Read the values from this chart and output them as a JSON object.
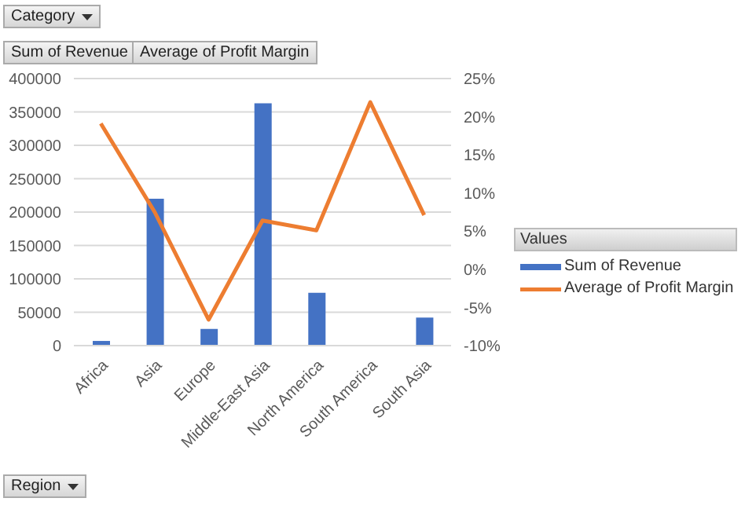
{
  "chart_data": {
    "type": "bar",
    "categories": [
      "Africa",
      "Asia",
      "Europe",
      "Middle-East Asia",
      "North America",
      "South America",
      "South Asia"
    ],
    "series": [
      {
        "name": "Sum of Revenue",
        "color": "#4472c4",
        "values": [
          7000,
          220000,
          25000,
          363000,
          79000,
          null,
          42000
        ]
      },
      {
        "name": "Average of Profit Margin",
        "type": "line",
        "axis": "y2",
        "color": "#ed7d31",
        "values": [
          19.1,
          7.5,
          -6.6,
          6.4,
          5.1,
          21.9,
          7.1
        ]
      }
    ],
    "ylim": [
      0,
      400000
    ],
    "yticks": [
      0,
      50000,
      100000,
      150000,
      200000,
      250000,
      300000,
      350000,
      400000
    ],
    "y2lim": [
      -10,
      25
    ],
    "y2ticks": [
      {
        "value": -10,
        "label": "-10%"
      },
      {
        "value": -5,
        "label": "-5%"
      },
      {
        "value": 0,
        "label": "0%"
      },
      {
        "value": 5,
        "label": "5%"
      },
      {
        "value": 10,
        "label": "10%"
      },
      {
        "value": 15,
        "label": "15%"
      },
      {
        "value": 20,
        "label": "20%"
      },
      {
        "value": 25,
        "label": "25%"
      }
    ],
    "grid": "y",
    "legend": "right",
    "legend_title": "Values",
    "marker": "none",
    "line_style": "solid",
    "annotations": [
      "Category",
      "Sum of Revenue",
      "Average of Profit Margin",
      "Region"
    ]
  }
}
